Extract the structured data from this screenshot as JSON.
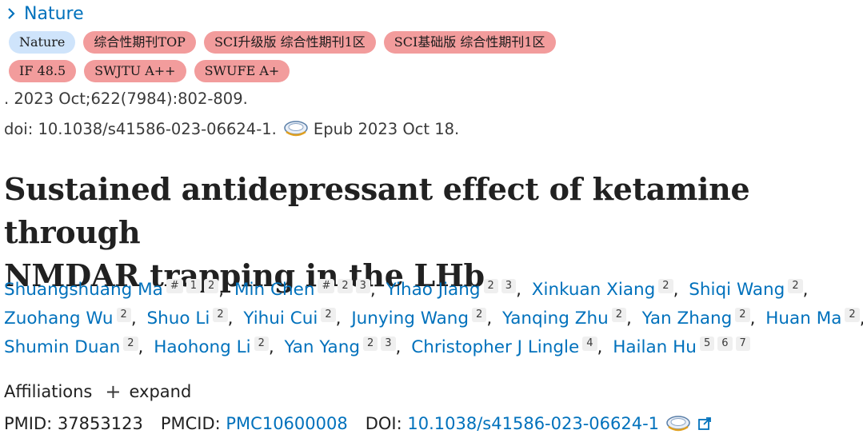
{
  "journal": {
    "name": "Nature"
  },
  "tags": {
    "row1": [
      "Nature",
      "综合性期刊TOP",
      "SCI升级版 综合性期刊1区",
      "SCI基础版 综合性期刊1区"
    ],
    "row2": [
      "IF 48.5",
      "SWJTU A++",
      "SWUFE A+"
    ]
  },
  "citation": {
    "issue": ". 2023 Oct;622(7984):802-809.",
    "doi_text": "doi: 10.1038/s41586-023-06624-1.",
    "epub": "Epub 2023 Oct 18."
  },
  "article": {
    "title_line1": "Sustained antidepressant effect of ketamine through",
    "title_line2": "NMDAR trapping in the LHb"
  },
  "authors": {
    "line1": [
      {
        "name": "Shuangshuang Ma",
        "sups": [
          "#",
          "1",
          "2"
        ]
      },
      {
        "name": "Min Chen",
        "sups": [
          "#",
          "2",
          "3"
        ]
      },
      {
        "name": "Yihao Jiang",
        "sups": [
          "2",
          "3"
        ]
      },
      {
        "name": "Xinkuan Xiang",
        "sups": [
          "2"
        ]
      },
      {
        "name": "Shiqi Wang",
        "sups": [
          "2"
        ]
      }
    ],
    "line2": [
      {
        "name": "Zuohang Wu",
        "sups": [
          "2"
        ]
      },
      {
        "name": "Shuo Li",
        "sups": [
          "2"
        ]
      },
      {
        "name": "Yihui Cui",
        "sups": [
          "2"
        ]
      },
      {
        "name": "Junying Wang",
        "sups": [
          "2"
        ]
      },
      {
        "name": "Yanqing Zhu",
        "sups": [
          "2"
        ]
      },
      {
        "name": "Yan Zhang",
        "sups": [
          "2"
        ]
      },
      {
        "name": "Huan Ma",
        "sups": [
          "2"
        ]
      }
    ],
    "line3": [
      {
        "name": "Shumin Duan",
        "sups": [
          "2"
        ]
      },
      {
        "name": "Haohong Li",
        "sups": [
          "2"
        ]
      },
      {
        "name": "Yan Yang",
        "sups": [
          "2",
          "3"
        ]
      },
      {
        "name": "Christopher J Lingle",
        "sups": [
          "4"
        ]
      },
      {
        "name": "Hailan Hu",
        "sups": [
          "5",
          "6",
          "7"
        ]
      }
    ]
  },
  "affiliations": {
    "label": "Affiliations",
    "expand": "expand",
    "plus": "+"
  },
  "identifiers": {
    "pmid_label": "PMID:",
    "pmid": "37853123",
    "pmcid_label": "PMCID:",
    "pmcid": "PMC10600008",
    "doi_label": "DOI:",
    "doi": "10.1038/s41586-023-06624-1"
  }
}
